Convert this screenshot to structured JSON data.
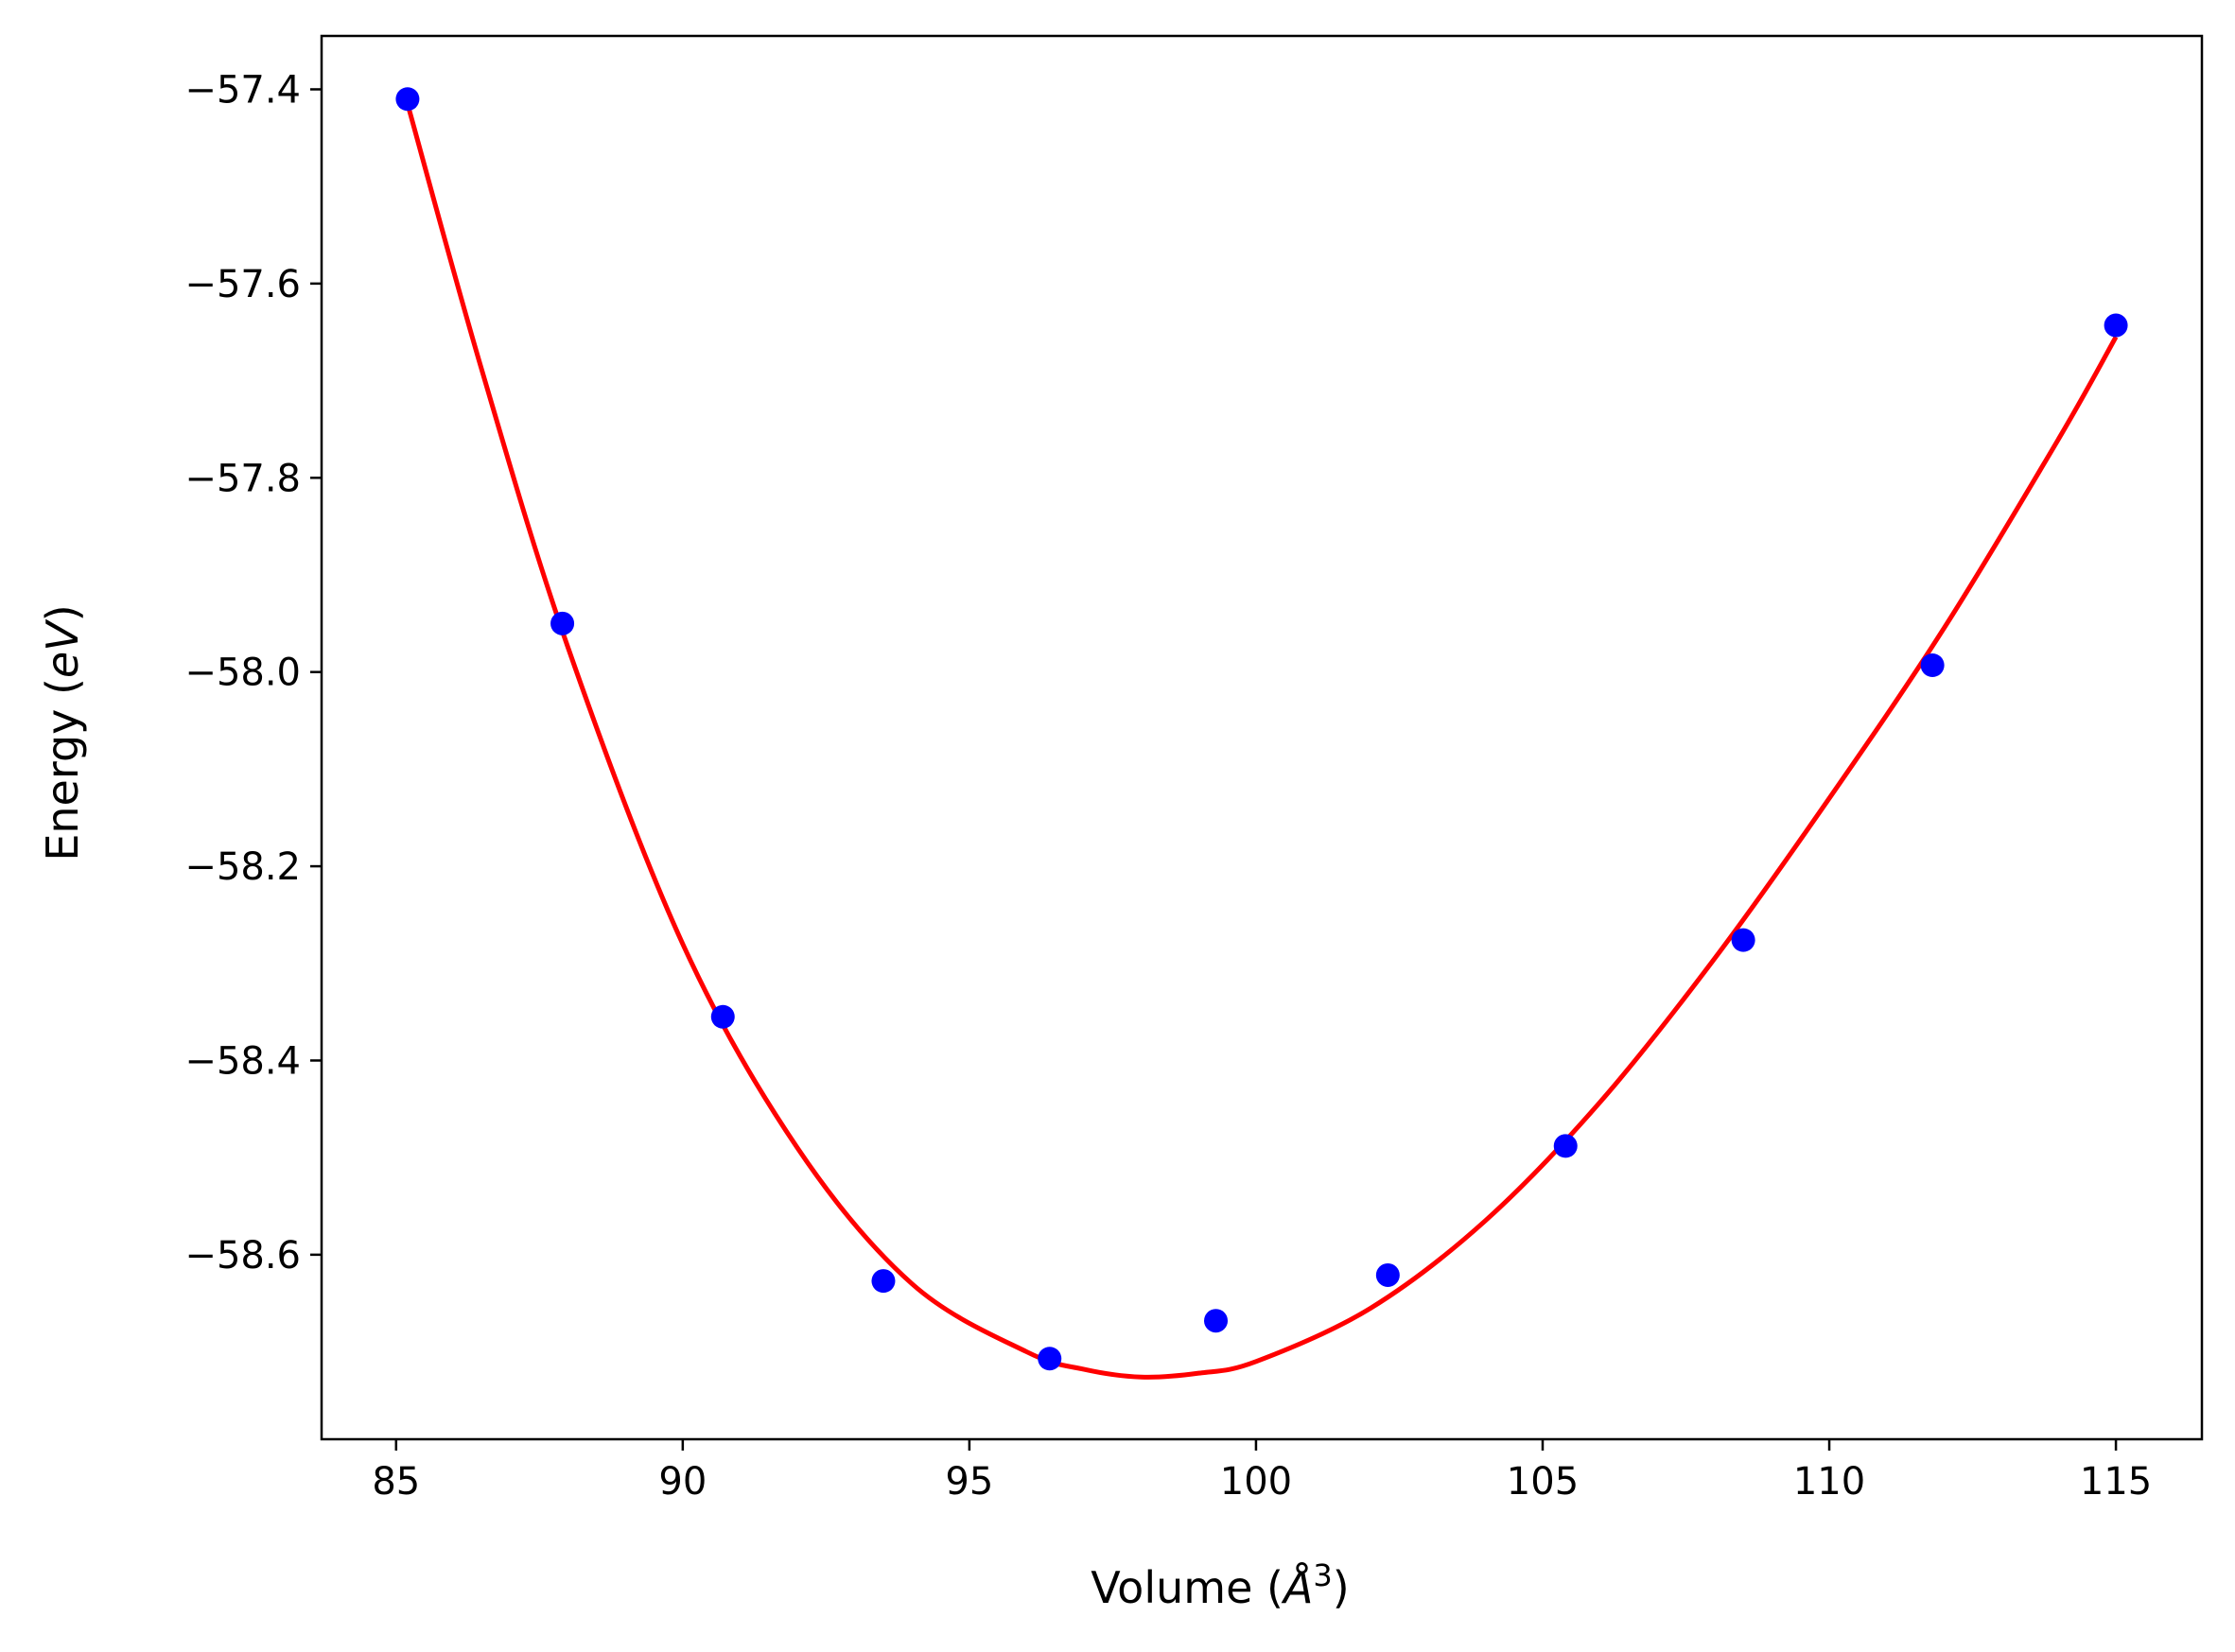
{
  "chart_data": {
    "type": "scatter",
    "title": "",
    "xlabel": {
      "prefix": "Volume (",
      "italic": "Å",
      "sup": "3",
      "suffix": ")"
    },
    "ylabel": {
      "prefix": "Energy (",
      "italic": "eV",
      "suffix": ")"
    },
    "xlim": [
      83.7,
      116.5
    ],
    "ylim": [
      -58.79,
      -57.345
    ],
    "xticks": [
      85,
      90,
      95,
      100,
      105,
      110,
      115
    ],
    "xtick_labels": [
      "85",
      "90",
      "95",
      "100",
      "105",
      "110",
      "115"
    ],
    "yticks": [
      -57.4,
      -57.6,
      -57.8,
      -58.0,
      -58.2,
      -58.4,
      -58.6
    ],
    "ytick_labels": [
      "−57.4",
      "−57.6",
      "−57.8",
      "−58.0",
      "−58.2",
      "−58.4",
      "−58.6"
    ],
    "grid": false,
    "legend": "none",
    "series": [
      {
        "kind": "points",
        "color": "#0000ff",
        "x": [
          85.2,
          87.9,
          90.7,
          93.5,
          96.4,
          99.3,
          102.3,
          105.4,
          108.5,
          111.8,
          115.0
        ],
        "y": [
          -57.41,
          -57.95,
          -58.355,
          -58.627,
          -58.707,
          -58.668,
          -58.621,
          -58.488,
          -58.276,
          -57.993,
          -57.643
        ]
      },
      {
        "kind": "fit",
        "color": "#ff0000",
        "x": [
          85.2,
          86.5,
          88.0,
          90.0,
          92.0,
          94.0,
          96.0,
          97.0,
          98.0,
          99.0,
          100.0,
          102.0,
          104.0,
          106.0,
          108.0,
          110.0,
          112.0,
          114.0,
          115.0
        ],
        "y": [
          -57.415,
          -57.69,
          -57.975,
          -58.28,
          -58.49,
          -58.63,
          -58.7,
          -58.718,
          -58.726,
          -58.722,
          -58.71,
          -58.655,
          -58.565,
          -58.443,
          -58.295,
          -58.13,
          -57.955,
          -57.76,
          -57.655
        ]
      }
    ]
  }
}
